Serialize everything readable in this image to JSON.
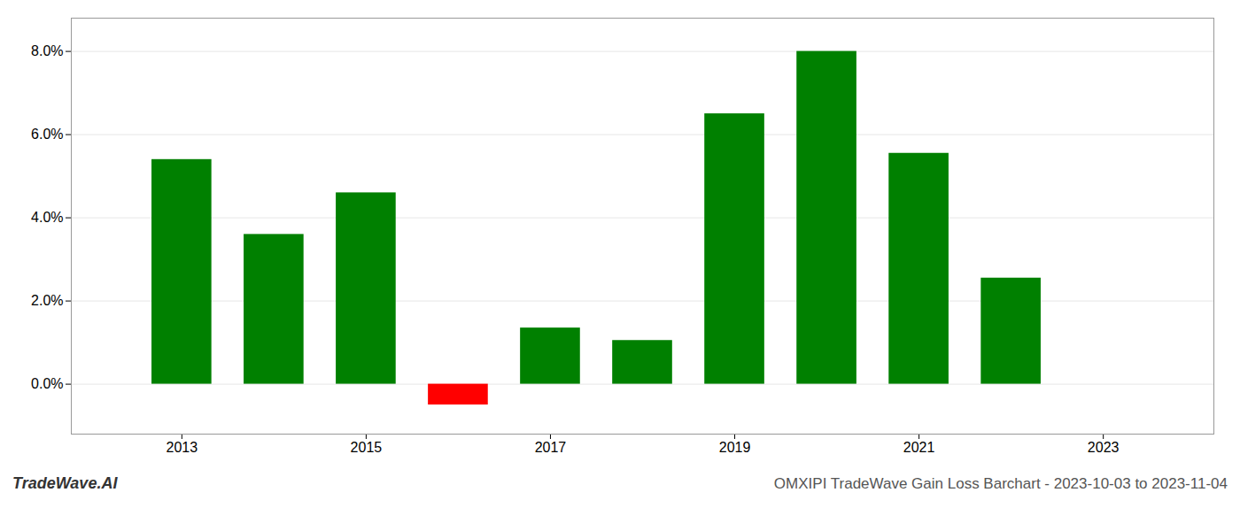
{
  "chart_data": {
    "type": "bar",
    "x": [
      2013,
      2014,
      2015,
      2016,
      2017,
      2018,
      2019,
      2020,
      2021,
      2022
    ],
    "values": [
      0.054,
      0.036,
      0.046,
      -0.005,
      0.0135,
      0.0105,
      0.065,
      0.08,
      0.0555,
      0.0255
    ],
    "colors": [
      "#008000",
      "#008000",
      "#008000",
      "#ff0000",
      "#008000",
      "#008000",
      "#008000",
      "#008000",
      "#008000",
      "#008000"
    ],
    "xlim": [
      2011.8,
      2024.2
    ],
    "xticks": [
      2013,
      2015,
      2017,
      2019,
      2021,
      2023
    ],
    "ylim": [
      -0.012,
      0.088
    ],
    "yticks": [
      {
        "value": 0.0,
        "label": "0.0%"
      },
      {
        "value": 0.02,
        "label": "2.0%"
      },
      {
        "value": 0.04,
        "label": "4.0%"
      },
      {
        "value": 0.06,
        "label": "6.0%"
      },
      {
        "value": 0.08,
        "label": "8.0%"
      }
    ],
    "grid": true,
    "annotations": [
      "TradeWave.AI",
      "OMXIPI TradeWave Gain Loss Barchart - 2023-10-03 to 2023-11-04"
    ]
  }
}
